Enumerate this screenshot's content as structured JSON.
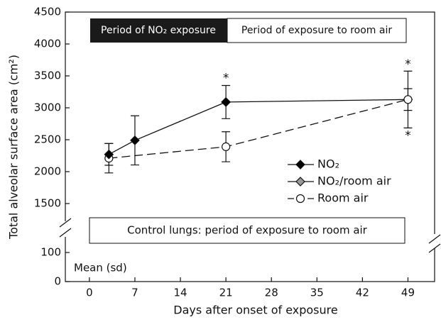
{
  "chart_data": {
    "type": "line",
    "y_label": "Total alveolar surface area (cm²)",
    "x_label": "Days after onset of exposure",
    "xlim": [
      -3.7,
      53.1
    ],
    "xticks": [
      0,
      7,
      14,
      21,
      28,
      35,
      42,
      49
    ],
    "ylim": [
      1250,
      4500
    ],
    "yticks": [
      1500,
      2000,
      2500,
      3000,
      3500,
      4000,
      4500
    ],
    "ylim_lower": [
      0,
      140
    ],
    "yticks_lower": [
      0,
      100
    ],
    "period_labels": [
      "Period of NO₂ exposure",
      "Period of exposure to room air"
    ],
    "control_label": "Control lungs: period of exposure to room air",
    "note": "Mean (sd)",
    "series": [
      {
        "name": "NO₂/room air",
        "color": "#999999",
        "marker": "diamond",
        "dash": false,
        "x": [
          21,
          49
        ],
        "values": [
          3090,
          3130
        ],
        "errors": [
          null,
          445
        ]
      },
      {
        "name": "NO₂",
        "color": "#000000",
        "marker": "diamond",
        "dash": false,
        "x": [
          3,
          7,
          21
        ],
        "values": [
          2270,
          2490,
          3090
        ],
        "errors": [
          170,
          385,
          260
        ]
      },
      {
        "name": "Room air",
        "color": "#ffffff",
        "marker": "circle",
        "dash": true,
        "x": [
          3,
          21,
          49
        ],
        "values": [
          2210,
          2390,
          3130
        ],
        "errors": [
          230,
          235,
          170
        ]
      }
    ],
    "legend_order": [
      1,
      0,
      2
    ],
    "annotations": [
      {
        "text": "*",
        "x": 21,
        "y": 3460
      },
      {
        "text": "*",
        "x": 49,
        "y": 3680
      },
      {
        "text": "*",
        "x": 49,
        "y": 2560
      }
    ]
  }
}
